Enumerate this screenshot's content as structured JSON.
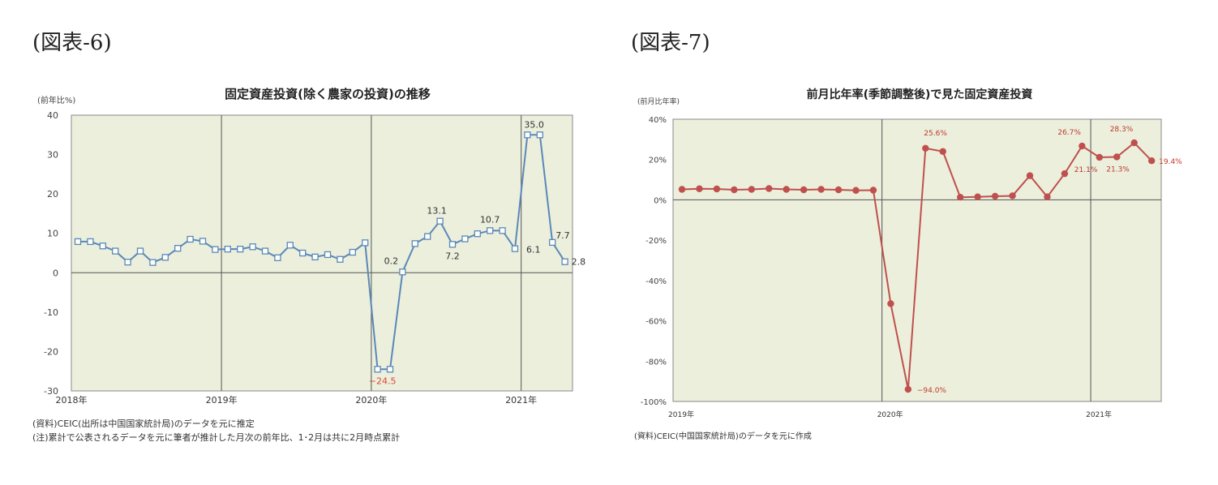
{
  "figures": {
    "left_label": "(図表-6)",
    "right_label": "(図表-7)"
  },
  "chart_data": [
    {
      "type": "line",
      "title": "固定資産投資(除く農家の投資)の推移",
      "ylabel": "(前年比%)",
      "ylim": [
        -30,
        40
      ],
      "yticks": [
        "40",
        "30",
        "20",
        "10",
        "0",
        "-10",
        "-20",
        "-30"
      ],
      "year_labels": [
        "2018年",
        "2019年",
        "2020年",
        "2021年"
      ],
      "grid": "vertical lines at year boundaries",
      "plot_bg": "#ebefdc",
      "line_color": "#5b88b8",
      "marker": "hollow square",
      "series": [
        {
          "x": [
            "2018-01",
            "2018-02",
            "2018-03",
            "2018-04",
            "2018-05",
            "2018-06",
            "2018-07",
            "2018-08",
            "2018-09",
            "2018-10",
            "2018-11",
            "2018-12",
            "2019-01",
            "2019-02",
            "2019-03",
            "2019-04",
            "2019-05",
            "2019-06",
            "2019-07",
            "2019-08",
            "2019-09",
            "2019-10",
            "2019-11",
            "2019-12",
            "2020-01",
            "2020-02",
            "2020-03",
            "2020-04",
            "2020-05",
            "2020-06",
            "2020-07",
            "2020-08",
            "2020-09",
            "2020-10",
            "2020-11",
            "2020-12",
            "2021-01",
            "2021-02",
            "2021-03",
            "2021-04"
          ],
          "values": [
            7.9,
            7.9,
            6.8,
            5.5,
            2.7,
            5.5,
            2.6,
            3.9,
            6.2,
            8.5,
            8.0,
            5.9,
            6.0,
            6.0,
            6.6,
            5.5,
            3.8,
            7.0,
            5.0,
            4.0,
            4.6,
            3.4,
            5.2,
            7.6,
            -24.5,
            -24.5,
            0.2,
            7.4,
            9.2,
            13.1,
            7.2,
            8.6,
            9.9,
            10.7,
            10.7,
            6.1,
            35.0,
            35.0,
            7.7,
            2.8
          ]
        }
      ],
      "data_labels": [
        {
          "text": "35.0"
        },
        {
          "text": "13.1"
        },
        {
          "text": "10.7"
        },
        {
          "text": "7.7"
        },
        {
          "text": "7.2"
        },
        {
          "text": "6.1"
        },
        {
          "text": "0.2"
        },
        {
          "text": "2.8"
        },
        {
          "text": "−24.5",
          "color": "#e0433a"
        }
      ],
      "notes": [
        "(資料)CEIC(出所は中国国家統計局)のデータを元に推定",
        "(注)累計で公表されるデータを元に筆者が推計した月次の前年比、1･2月は共に2月時点累計"
      ]
    },
    {
      "type": "line",
      "title": "前月比年率(季節調整後)で見た固定資産投資",
      "ylabel": "(前月比年率)",
      "ylim": [
        -100,
        40
      ],
      "yticks": [
        "40%",
        "20%",
        "0%",
        "-20%",
        "-40%",
        "-60%",
        "-80%",
        "-100%"
      ],
      "year_labels": [
        "2019年",
        "2020年",
        "2021年"
      ],
      "grid": "vertical lines at year boundaries",
      "plot_bg": "#ebefdc",
      "line_color": "#c0504d",
      "marker": "filled circle",
      "series": [
        {
          "x": [
            "2019-01",
            "2019-02",
            "2019-03",
            "2019-04",
            "2019-05",
            "2019-06",
            "2019-07",
            "2019-08",
            "2019-09",
            "2019-10",
            "2019-11",
            "2019-12",
            "2020-01",
            "2020-02",
            "2020-03",
            "2020-04",
            "2020-05",
            "2020-06",
            "2020-07",
            "2020-08",
            "2020-09",
            "2020-10",
            "2020-11",
            "2020-12",
            "2021-01",
            "2021-02",
            "2021-03",
            "2021-04"
          ],
          "values": [
            5.2,
            5.5,
            5.4,
            5.0,
            5.2,
            5.6,
            5.2,
            5.0,
            5.2,
            5.0,
            4.7,
            4.8,
            -51.5,
            -94.0,
            25.6,
            24.0,
            1.3,
            1.5,
            1.8,
            2.0,
            12.0,
            1.5,
            13.0,
            26.7,
            21.1,
            21.3,
            28.3,
            19.4
          ]
        }
      ],
      "data_labels": [
        {
          "text": "25.6%"
        },
        {
          "text": "26.7%"
        },
        {
          "text": "28.3%"
        },
        {
          "text": "21.1%"
        },
        {
          "text": "21.3%"
        },
        {
          "text": "19.4%"
        },
        {
          "text": "−94.0%"
        }
      ],
      "notes": [
        "(資料)CEIC(中国国家統計局)のデータを元に作成"
      ]
    }
  ]
}
